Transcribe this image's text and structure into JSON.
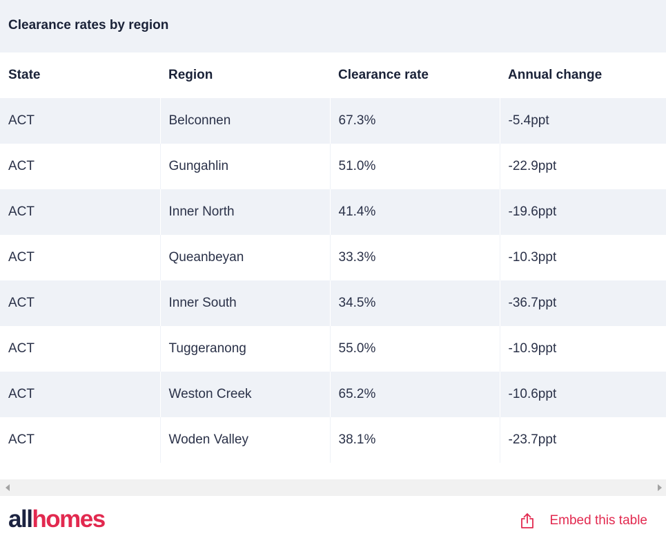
{
  "title": "Clearance rates by region",
  "table": {
    "headers": [
      "State",
      "Region",
      "Clearance rate",
      "Annual change"
    ],
    "rows": [
      [
        "ACT",
        "Belconnen",
        "67.3%",
        "-5.4ppt"
      ],
      [
        "ACT",
        "Gungahlin",
        "51.0%",
        "-22.9ppt"
      ],
      [
        "ACT",
        "Inner North",
        "41.4%",
        "-19.6ppt"
      ],
      [
        "ACT",
        "Queanbeyan",
        "33.3%",
        "-10.3ppt"
      ],
      [
        "ACT",
        "Inner South",
        "34.5%",
        "-36.7ppt"
      ],
      [
        "ACT",
        "Tuggeranong",
        "55.0%",
        "-10.9ppt"
      ],
      [
        "ACT",
        "Weston Creek",
        "65.2%",
        "-10.6ppt"
      ],
      [
        "ACT",
        "Woden Valley",
        "38.1%",
        "-23.7ppt"
      ]
    ]
  },
  "footer": {
    "logo_part1": "all",
    "logo_part2": "homes",
    "embed_label": "Embed this table",
    "embed_icon": "share-icon"
  },
  "colors": {
    "navy": "#1b2240",
    "accent": "#e2294f",
    "stripe": "#eff2f7"
  }
}
